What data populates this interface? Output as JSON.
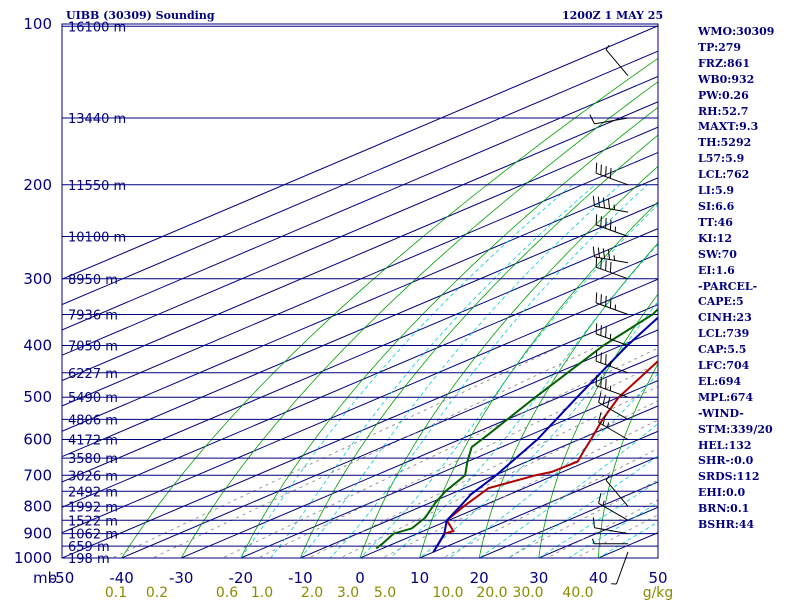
{
  "header": {
    "station": "UIBB (30309) Sounding",
    "time": "1200Z  1 MAY 25"
  },
  "stats": [
    "WMO:30309",
    "TP:279",
    "FRZ:861",
    "WB0:932",
    "PW:0.26",
    "RH:52.7",
    "MAXT:9.3",
    "TH:5292",
    "L57:5.9",
    "LCL:762",
    "LI:5.9",
    "SI:6.6",
    "TT:46",
    "KI:12",
    "SW:70",
    "EI:1.6",
    "-PARCEL-",
    "CAPE:5",
    "CINH:23",
    "LCL:739",
    "CAP:5.5",
    "LFC:704",
    "EL:694",
    "MPL:674",
    "-WIND-",
    "STM:339/20",
    "HEL:132",
    "SHR-:0.0",
    "SRDS:112",
    "EHI:0.0",
    "BRN:0.1",
    "BSHR:44"
  ],
  "colors": {
    "isobar": "#00007f",
    "isotherm": "#00007f",
    "dry_adiabat": "#00a000",
    "moist_adiabat": "#00ced1",
    "mixing_ratio": "#808080",
    "temperature": "#b00000",
    "dewpoint": "#006400",
    "parcel": "#0000aa",
    "mr_label": "#8b8b00",
    "wind_barb": "#000000"
  },
  "chart_data": {
    "type": "line",
    "title": "UIBB (30309) Sounding",
    "y_scale": "log",
    "ylim": [
      1000,
      100
    ],
    "xlim": [
      -50,
      50
    ],
    "pressure_units": "mb",
    "pressure_ticks": [
      {
        "label": "100",
        "p": 100
      },
      {
        "label": "200",
        "p": 200
      },
      {
        "label": "300",
        "p": 300
      },
      {
        "label": "400",
        "p": 400
      },
      {
        "label": "500",
        "p": 500
      },
      {
        "label": "600",
        "p": 600
      },
      {
        "label": "700",
        "p": 700
      },
      {
        "label": "800",
        "p": 800
      },
      {
        "label": "900",
        "p": 900
      },
      {
        "label": "1000",
        "p": 1000
      }
    ],
    "temp_ticks": [
      "-50",
      "-40",
      "-30",
      "-20",
      "-10",
      "0",
      "10",
      "20",
      "30",
      "40",
      "50"
    ],
    "temp_tick_values": [
      -50,
      -40,
      -30,
      -20,
      -10,
      0,
      10,
      20,
      30,
      40,
      50
    ],
    "height_labels": [
      {
        "label": "16100 m",
        "p": 101
      },
      {
        "label": "13440 m",
        "p": 150
      },
      {
        "label": "11550 m",
        "p": 200
      },
      {
        "label": "10100 m",
        "p": 250
      },
      {
        "label": "8950 m",
        "p": 300
      },
      {
        "label": "7936 m",
        "p": 350
      },
      {
        "label": "7050 m",
        "p": 400
      },
      {
        "label": "6227 m",
        "p": 450
      },
      {
        "label": "5490 m",
        "p": 500
      },
      {
        "label": "4806 m",
        "p": 550
      },
      {
        "label": "4172 m",
        "p": 600
      },
      {
        "label": "3580 m",
        "p": 650
      },
      {
        "label": "3026 m",
        "p": 700
      },
      {
        "label": "2492 m",
        "p": 750
      },
      {
        "label": "1992 m",
        "p": 800
      },
      {
        "label": "1522 m",
        "p": 850
      },
      {
        "label": "1062 m",
        "p": 900
      },
      {
        "label": "659 m",
        "p": 950
      },
      {
        "label": "198 m",
        "p": 1000
      }
    ],
    "mixing_ratio_labels": [
      "0.1",
      "0.2",
      "0.6",
      "1.0",
      "2.0",
      "3.0",
      "5.0",
      "10.0",
      "20.0",
      "30.0",
      "40.0",
      "g/kg"
    ],
    "mixing_ratio_values": [
      0.1,
      0.2,
      0.6,
      1.0,
      2.0,
      3.0,
      5.0,
      10.0,
      20.0,
      30.0,
      40.0
    ],
    "mixing_ratio_unit": "g/kg",
    "series": [
      {
        "id": "temperature",
        "points": [
          [
            975,
            10
          ],
          [
            900,
            4.6
          ],
          [
            890,
            5
          ],
          [
            850,
            -0.3
          ],
          [
            800,
            -3
          ],
          [
            740,
            -6
          ],
          [
            700,
            -3.2
          ],
          [
            690,
            -1.8
          ],
          [
            660,
            -1.5
          ],
          [
            635,
            -4.2
          ],
          [
            600,
            -8
          ],
          [
            550,
            -14
          ],
          [
            500,
            -20
          ],
          [
            400,
            -31
          ],
          [
            300,
            -43
          ],
          [
            279,
            -51
          ],
          [
            250,
            -47
          ],
          [
            200,
            -46
          ],
          [
            150,
            -48
          ],
          [
            100,
            -54
          ]
        ]
      },
      {
        "id": "dewpoint",
        "points": [
          [
            960,
            -1
          ],
          [
            940,
            -1.9
          ],
          [
            900,
            -4
          ],
          [
            880,
            -3
          ],
          [
            840,
            -5
          ],
          [
            790,
            -9
          ],
          [
            750,
            -12
          ],
          [
            700,
            -15
          ],
          [
            660,
            -20
          ],
          [
            620,
            -25
          ],
          [
            590,
            -27
          ],
          [
            500,
            -34
          ],
          [
            400,
            -43
          ],
          [
            350,
            -47
          ],
          [
            300,
            -55
          ],
          [
            279,
            -58
          ],
          [
            250,
            -57
          ],
          [
            200,
            -63
          ],
          [
            150,
            -71
          ],
          [
            100,
            -82
          ]
        ]
      },
      {
        "id": "parcel",
        "points": [
          [
            975,
            10
          ],
          [
            900,
            4.5
          ],
          [
            850,
            -0.3
          ],
          [
            800,
            -3.6
          ],
          [
            760,
            -6.5
          ],
          [
            700,
            -9.8
          ],
          [
            600,
            -17
          ],
          [
            500,
            -27
          ],
          [
            400,
            -39
          ],
          [
            300,
            -53
          ],
          [
            250,
            -63
          ],
          [
            200,
            -76
          ],
          [
            150,
            -91
          ],
          [
            130,
            -99
          ]
        ]
      }
    ],
    "winds": [
      {
        "p": 975,
        "dir": 200,
        "spd": 5
      },
      {
        "p": 940,
        "dir": 270,
        "spd": 5
      },
      {
        "p": 900,
        "dir": 280,
        "spd": 10
      },
      {
        "p": 850,
        "dir": 300,
        "spd": 15
      },
      {
        "p": 800,
        "dir": 320,
        "spd": 5
      },
      {
        "p": 600,
        "dir": 300,
        "spd": 25
      },
      {
        "p": 550,
        "dir": 300,
        "spd": 30
      },
      {
        "p": 500,
        "dir": 290,
        "spd": 35
      },
      {
        "p": 450,
        "dir": 290,
        "spd": 35
      },
      {
        "p": 400,
        "dir": 290,
        "spd": 35
      },
      {
        "p": 350,
        "dir": 290,
        "spd": 45
      },
      {
        "p": 300,
        "dir": 290,
        "spd": 40
      },
      {
        "p": 280,
        "dir": 280,
        "spd": 45
      },
      {
        "p": 250,
        "dir": 290,
        "spd": 45
      },
      {
        "p": 225,
        "dir": 280,
        "spd": 45
      },
      {
        "p": 200,
        "dir": 290,
        "spd": 40
      },
      {
        "p": 150,
        "dir": 260,
        "spd": 10
      },
      {
        "p": 125,
        "dir": 320,
        "spd": 5
      }
    ]
  }
}
